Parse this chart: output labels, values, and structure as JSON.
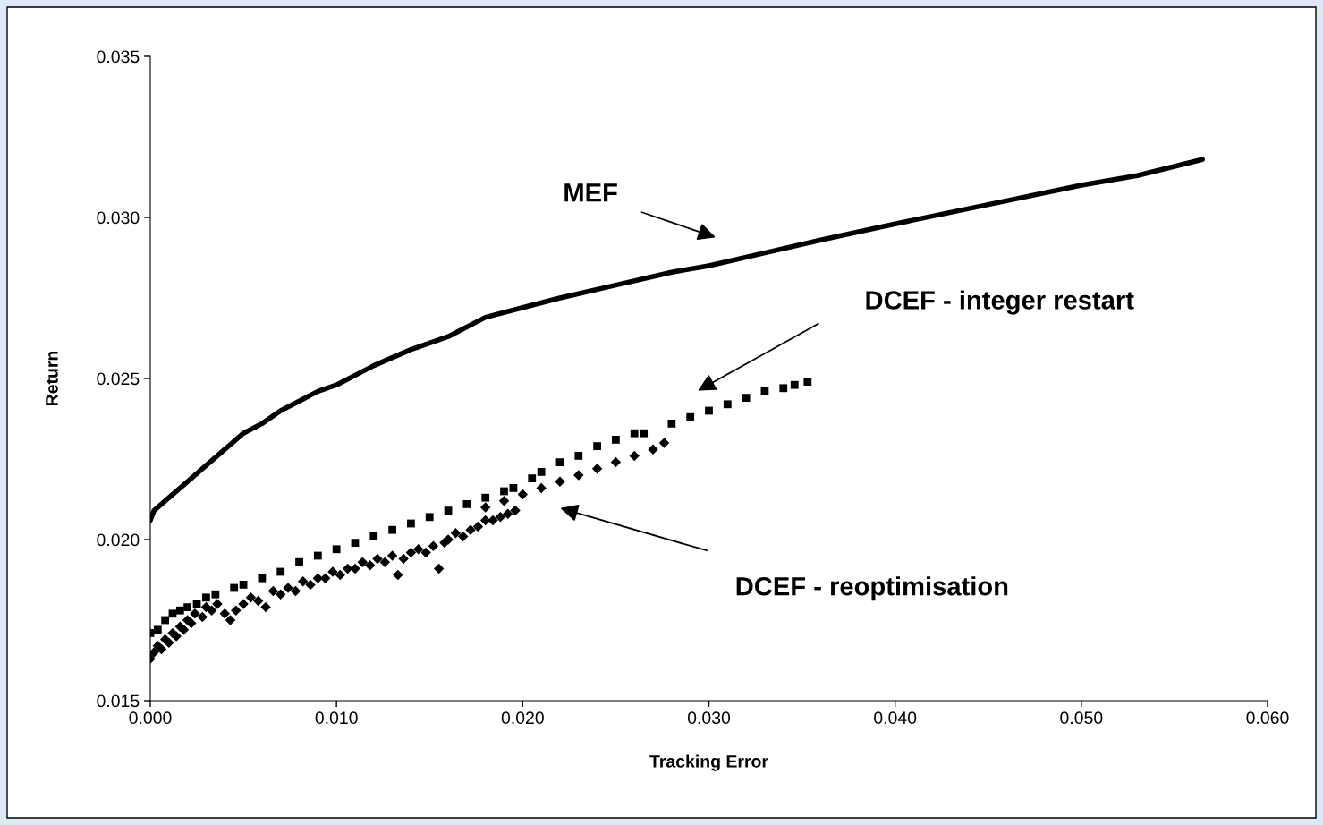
{
  "chart_data": {
    "type": "scatter",
    "xlabel": "Tracking Error",
    "ylabel": "Return",
    "xlim": [
      0,
      0.06
    ],
    "xticks": [
      {
        "value": 0,
        "label": "0.000"
      },
      {
        "value": 0.01,
        "label": "0.010"
      },
      {
        "value": 0.02,
        "label": "0.020"
      },
      {
        "value": 0.03,
        "label": "0.030"
      },
      {
        "value": 0.04,
        "label": "0.040"
      },
      {
        "value": 0.05,
        "label": "0.050"
      },
      {
        "value": 0.06,
        "label": "0.060"
      }
    ],
    "ylim": [
      0.015,
      0.035
    ],
    "yticks": [
      {
        "value": 0.015,
        "label": "0.015"
      },
      {
        "value": 0.02,
        "label": "0.020"
      },
      {
        "value": 0.025,
        "label": "0.025"
      },
      {
        "value": 0.03,
        "label": "0.030"
      },
      {
        "value": 0.035,
        "label": "0.035"
      }
    ],
    "grid": false,
    "legend": false,
    "series": [
      {
        "type": "line",
        "color": "#000000",
        "marker": "none",
        "x": [
          0.0,
          0.0002,
          0.001,
          0.0018,
          0.003,
          0.004,
          0.005,
          0.006,
          0.007,
          0.008,
          0.009,
          0.01,
          0.012,
          0.014,
          0.016,
          0.018,
          0.02,
          0.022,
          0.025,
          0.028,
          0.03,
          0.033,
          0.036,
          0.04,
          0.045,
          0.05,
          0.053,
          0.0565
        ],
        "values": [
          0.0206,
          0.0209,
          0.0213,
          0.0217,
          0.0223,
          0.0228,
          0.0233,
          0.0236,
          0.024,
          0.0243,
          0.0246,
          0.0248,
          0.0254,
          0.0259,
          0.0263,
          0.0269,
          0.0272,
          0.0275,
          0.0279,
          0.0283,
          0.0285,
          0.0289,
          0.0293,
          0.0298,
          0.0304,
          0.031,
          0.0313,
          0.0318
        ]
      },
      {
        "color": "#000000",
        "marker": "square",
        "x": [
          0.0,
          0.0004,
          0.0008,
          0.0012,
          0.0016,
          0.002,
          0.0025,
          0.003,
          0.0035,
          0.0045,
          0.005,
          0.006,
          0.007,
          0.008,
          0.009,
          0.01,
          0.011,
          0.012,
          0.013,
          0.014,
          0.015,
          0.016,
          0.017,
          0.018,
          0.019,
          0.0195,
          0.0205,
          0.021,
          0.022,
          0.023,
          0.024,
          0.025,
          0.026,
          0.0265,
          0.028,
          0.029,
          0.03,
          0.031,
          0.032,
          0.033,
          0.034,
          0.0346,
          0.0353
        ],
        "values": [
          0.0171,
          0.0172,
          0.0175,
          0.0177,
          0.0178,
          0.0179,
          0.018,
          0.0182,
          0.0183,
          0.0185,
          0.0186,
          0.0188,
          0.019,
          0.0193,
          0.0195,
          0.0197,
          0.0199,
          0.0201,
          0.0203,
          0.0205,
          0.0207,
          0.0209,
          0.0211,
          0.0213,
          0.0215,
          0.0216,
          0.0219,
          0.0221,
          0.0224,
          0.0226,
          0.0229,
          0.0231,
          0.0233,
          0.0233,
          0.0236,
          0.0238,
          0.024,
          0.0242,
          0.0244,
          0.0246,
          0.0247,
          0.0248,
          0.0249
        ]
      },
      {
        "color": "#000000",
        "marker": "diamond",
        "x": [
          0.0,
          0.0002,
          0.0004,
          0.0006,
          0.0008,
          0.001,
          0.0012,
          0.0014,
          0.0016,
          0.0018,
          0.002,
          0.0022,
          0.0024,
          0.0028,
          0.003,
          0.0033,
          0.0036,
          0.004,
          0.0043,
          0.0046,
          0.005,
          0.0054,
          0.0058,
          0.0062,
          0.0066,
          0.007,
          0.0074,
          0.0078,
          0.0082,
          0.0086,
          0.009,
          0.0094,
          0.0098,
          0.0102,
          0.0106,
          0.011,
          0.0114,
          0.0118,
          0.0122,
          0.0126,
          0.013,
          0.0133,
          0.0136,
          0.014,
          0.0144,
          0.0148,
          0.0152,
          0.0155,
          0.0158,
          0.016,
          0.0164,
          0.0168,
          0.0172,
          0.0176,
          0.018,
          0.0184,
          0.0188,
          0.0192,
          0.0196,
          0.018,
          0.019,
          0.02,
          0.021,
          0.022,
          0.023,
          0.024,
          0.025,
          0.026,
          0.027,
          0.0276
        ],
        "values": [
          0.0163,
          0.0165,
          0.0167,
          0.0166,
          0.0169,
          0.0168,
          0.0171,
          0.017,
          0.0173,
          0.0172,
          0.0175,
          0.0174,
          0.0177,
          0.0176,
          0.0179,
          0.0178,
          0.018,
          0.0177,
          0.0175,
          0.0178,
          0.018,
          0.0182,
          0.0181,
          0.0179,
          0.0184,
          0.0183,
          0.0185,
          0.0184,
          0.0187,
          0.0186,
          0.0188,
          0.0188,
          0.019,
          0.0189,
          0.0191,
          0.0191,
          0.0193,
          0.0192,
          0.0194,
          0.0193,
          0.0195,
          0.0189,
          0.0194,
          0.0196,
          0.0197,
          0.0196,
          0.0198,
          0.0191,
          0.0199,
          0.02,
          0.0202,
          0.0201,
          0.0203,
          0.0204,
          0.0206,
          0.0206,
          0.0207,
          0.0208,
          0.0209,
          0.021,
          0.0212,
          0.0214,
          0.0216,
          0.0218,
          0.022,
          0.0222,
          0.0224,
          0.0226,
          0.0228,
          0.023
        ]
      }
    ],
    "annotations": [
      "MEF",
      "DCEF - integer restart",
      "DCEF - reoptimisation"
    ]
  }
}
